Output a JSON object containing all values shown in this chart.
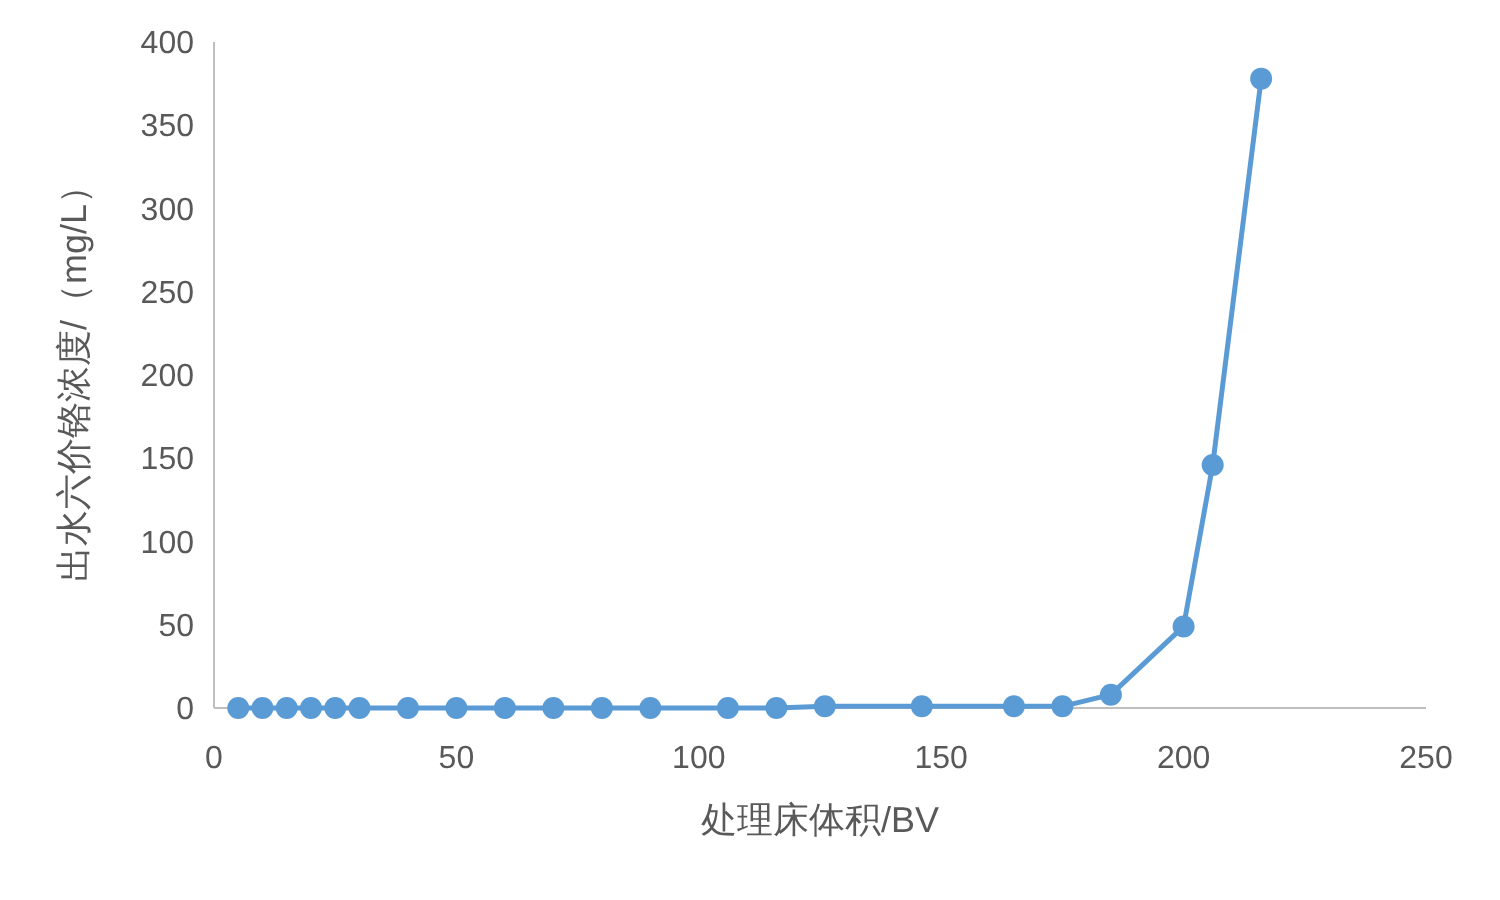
{
  "chart_data": {
    "type": "line",
    "xlabel": "处理床体积/BV",
    "ylabel": "出水六价铬浓度/（mg/L）",
    "x": [
      5,
      10,
      15,
      20,
      25,
      30,
      40,
      50,
      60,
      70,
      80,
      90,
      106,
      116,
      126,
      146,
      165,
      175,
      185,
      200,
      206,
      216
    ],
    "series": [
      {
        "color": "#5b9bd5",
        "values": [
          0,
          0,
          0,
          0,
          0,
          0,
          0,
          0,
          0,
          0,
          0,
          0,
          0,
          0,
          1,
          1,
          1,
          1,
          8,
          49,
          146,
          378
        ]
      }
    ],
    "xlim": [
      0,
      250
    ],
    "xticks": [
      0,
      50,
      100,
      150,
      200,
      250
    ],
    "ylim": [
      0,
      400
    ],
    "yticks": [
      0,
      50,
      100,
      150,
      200,
      250,
      300,
      350,
      400
    ],
    "grid": false,
    "marker": "circle",
    "line_style": "solid"
  }
}
